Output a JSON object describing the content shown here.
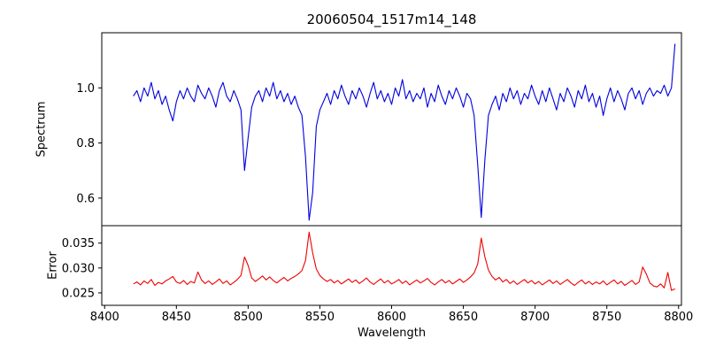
{
  "title": "20060504_1517m14_148",
  "x_axis": {
    "label": "Wavelength",
    "lim": [
      8398,
      8802
    ],
    "ticks": [
      8400,
      8450,
      8500,
      8550,
      8600,
      8650,
      8700,
      8750,
      8800
    ]
  },
  "chart_data": [
    {
      "type": "line",
      "name": "spectrum",
      "color": "#0000dd",
      "ylabel": "Spectrum",
      "ylim": [
        0.5,
        1.2
      ],
      "ytick_values": [
        0.6,
        0.8,
        1.0
      ],
      "ytick_labels": [
        "0.6",
        "0.8",
        "1.0"
      ],
      "x_start": 8420,
      "x_step": 2.5,
      "values": [
        0.97,
        0.99,
        0.95,
        1.0,
        0.97,
        1.02,
        0.96,
        0.99,
        0.94,
        0.97,
        0.92,
        0.88,
        0.95,
        0.99,
        0.96,
        1.0,
        0.97,
        0.95,
        1.01,
        0.98,
        0.96,
        1.0,
        0.97,
        0.93,
        0.99,
        1.02,
        0.97,
        0.95,
        0.99,
        0.96,
        0.92,
        0.7,
        0.82,
        0.93,
        0.97,
        0.99,
        0.95,
        1.0,
        0.97,
        1.02,
        0.96,
        0.99,
        0.95,
        0.98,
        0.94,
        0.97,
        0.93,
        0.9,
        0.75,
        0.52,
        0.62,
        0.86,
        0.92,
        0.95,
        0.98,
        0.94,
        0.99,
        0.96,
        1.01,
        0.97,
        0.94,
        0.99,
        0.96,
        1.0,
        0.97,
        0.93,
        0.98,
        1.02,
        0.96,
        0.99,
        0.95,
        0.98,
        0.94,
        1.0,
        0.97,
        1.03,
        0.96,
        0.99,
        0.95,
        0.98,
        0.96,
        1.0,
        0.93,
        0.98,
        0.95,
        1.01,
        0.97,
        0.94,
        0.99,
        0.96,
        1.0,
        0.97,
        0.93,
        0.98,
        0.96,
        0.9,
        0.72,
        0.53,
        0.74,
        0.9,
        0.94,
        0.97,
        0.92,
        0.98,
        0.95,
        1.0,
        0.96,
        0.99,
        0.94,
        0.98,
        0.96,
        1.01,
        0.97,
        0.94,
        0.99,
        0.95,
        1.0,
        0.96,
        0.92,
        0.98,
        0.95,
        1.0,
        0.97,
        0.93,
        0.99,
        0.96,
        1.01,
        0.95,
        0.98,
        0.93,
        0.97,
        0.9,
        0.96,
        1.0,
        0.95,
        0.99,
        0.96,
        0.92,
        0.98,
        1.0,
        0.96,
        0.99,
        0.94,
        0.98,
        1.0,
        0.97,
        0.99,
        0.98,
        1.01,
        0.97,
        1.0,
        1.16
      ]
    },
    {
      "type": "line",
      "name": "error",
      "color": "#ee0000",
      "ylabel": "Error",
      "ylim": [
        0.0225,
        0.0385
      ],
      "ytick_values": [
        0.025,
        0.03,
        0.035
      ],
      "ytick_labels": [
        "0.025",
        "0.030",
        "0.035"
      ],
      "x_start": 8420,
      "x_step": 2.5,
      "values": [
        0.0268,
        0.0272,
        0.0266,
        0.0274,
        0.0269,
        0.0277,
        0.0265,
        0.0271,
        0.0268,
        0.0274,
        0.0278,
        0.0283,
        0.0272,
        0.0269,
        0.0275,
        0.0267,
        0.0273,
        0.027,
        0.0292,
        0.0276,
        0.0269,
        0.0274,
        0.0267,
        0.0272,
        0.0278,
        0.0269,
        0.0274,
        0.0266,
        0.0271,
        0.0277,
        0.0285,
        0.0322,
        0.0305,
        0.028,
        0.0273,
        0.0278,
        0.0284,
        0.0276,
        0.0282,
        0.0275,
        0.027,
        0.0276,
        0.0281,
        0.0274,
        0.0279,
        0.0283,
        0.0288,
        0.0295,
        0.0315,
        0.0372,
        0.033,
        0.0298,
        0.0285,
        0.0278,
        0.0273,
        0.0277,
        0.027,
        0.0275,
        0.0268,
        0.0273,
        0.0278,
        0.0271,
        0.0276,
        0.0269,
        0.0274,
        0.028,
        0.0272,
        0.0267,
        0.0273,
        0.0278,
        0.027,
        0.0275,
        0.0268,
        0.0272,
        0.0277,
        0.0269,
        0.0274,
        0.0266,
        0.0271,
        0.0276,
        0.027,
        0.0274,
        0.0279,
        0.0271,
        0.0266,
        0.0272,
        0.0277,
        0.027,
        0.0275,
        0.0268,
        0.0273,
        0.0278,
        0.0271,
        0.0276,
        0.0282,
        0.029,
        0.0308,
        0.036,
        0.0322,
        0.0296,
        0.0283,
        0.0276,
        0.0281,
        0.0272,
        0.0277,
        0.0269,
        0.0274,
        0.0267,
        0.0272,
        0.0277,
        0.027,
        0.0275,
        0.0268,
        0.0273,
        0.0266,
        0.0271,
        0.0276,
        0.0269,
        0.0274,
        0.0267,
        0.0272,
        0.0277,
        0.027,
        0.0265,
        0.0271,
        0.0276,
        0.0268,
        0.0273,
        0.0267,
        0.0272,
        0.0268,
        0.0274,
        0.0266,
        0.0271,
        0.0276,
        0.0268,
        0.0273,
        0.0265,
        0.027,
        0.0275,
        0.0267,
        0.0272,
        0.0302,
        0.0288,
        0.027,
        0.0264,
        0.0262,
        0.0268,
        0.026,
        0.0291,
        0.0255,
        0.0258
      ]
    }
  ]
}
